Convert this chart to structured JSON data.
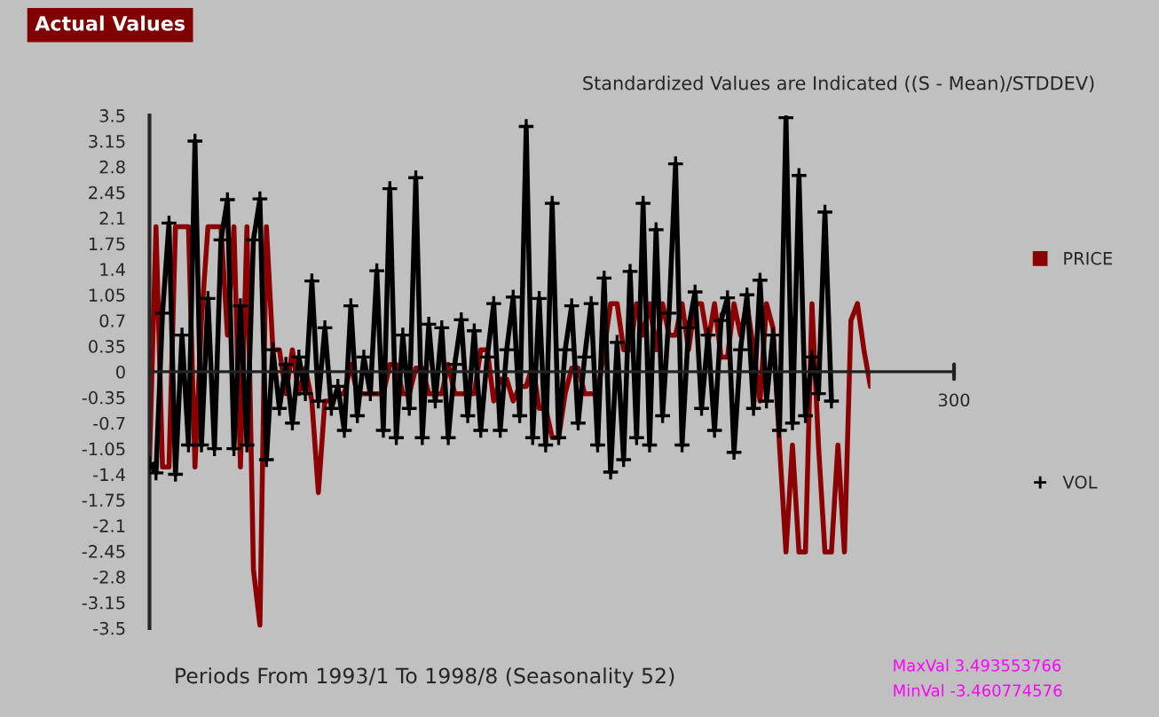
{
  "chart_data": {
    "type": "line",
    "title": "Actual Values",
    "subtitle": "Standardized Values are Indicated ((S - Mean)/STDDEV)",
    "annotations": [
      "Periods From 1993/1 To 1998/8 (Seasonality 52)",
      "MaxVal 3.493553766",
      "MinVal -3.460774576",
      "300"
    ],
    "categories": [
      null,
      null,
      null,
      null,
      null,
      null,
      null,
      null,
      null,
      null,
      null,
      null,
      null,
      null,
      null,
      null,
      null,
      null,
      null,
      null,
      null,
      null,
      null,
      null,
      null,
      null,
      null,
      null,
      null,
      null,
      null,
      null,
      null,
      null,
      null,
      null,
      null,
      null,
      null,
      null,
      null,
      null,
      null,
      null,
      null,
      null,
      null,
      null,
      null,
      null,
      null,
      null,
      null,
      null,
      null,
      null,
      null,
      null,
      null,
      null,
      null,
      null,
      null,
      null,
      null,
      null,
      null,
      null,
      null,
      null,
      null,
      null,
      null,
      null,
      null,
      null,
      null,
      null,
      null,
      null,
      null,
      null,
      null,
      null,
      null,
      null,
      null,
      null,
      null,
      null,
      null,
      null,
      null,
      null,
      null,
      null,
      null,
      null,
      null,
      null,
      null,
      null,
      null,
      null,
      null,
      null,
      null,
      null,
      null,
      null,
      null,
      null
    ],
    "ylim": [
      -3.5,
      3.5
    ],
    "yticks": [
      3.5,
      3.15,
      2.8,
      2.45,
      2.1,
      1.75,
      1.4,
      1.05,
      0.7,
      0.35,
      0,
      -0.35,
      -0.7,
      -1.05,
      -1.4,
      -1.75,
      -2.1,
      -2.45,
      -2.8,
      -3.15,
      -3.5
    ],
    "grid": false,
    "legend": "right",
    "ref_lines": [
      {
        "axis": "y",
        "value": 0,
        "color": "#222222"
      }
    ],
    "series": [
      {
        "name": "PRICE",
        "color": "#8b0000",
        "values": [
          -1.2,
          1.98,
          -1.3,
          -1.3,
          1.98,
          1.98,
          1.98,
          -1.3,
          0.7,
          1.98,
          1.98,
          1.98,
          0.5,
          1.98,
          -1.3,
          1.98,
          -2.7,
          -3.46,
          1.98,
          0.3,
          0.3,
          -0.3,
          0.3,
          -0.3,
          0.05,
          -0.4,
          -1.65,
          -0.4,
          -0.4,
          -0.3,
          -0.3,
          0.1,
          -0.3,
          -0.3,
          -0.3,
          -0.3,
          -0.3,
          0.1,
          0.1,
          -0.3,
          -0.3,
          0.05,
          0.05,
          -0.3,
          -0.3,
          -0.3,
          0.1,
          -0.3,
          -0.3,
          -0.3,
          -0.3,
          0.3,
          0.3,
          -0.4,
          -0.1,
          -0.1,
          -0.4,
          -0.2,
          -0.2,
          0.1,
          -0.5,
          -0.5,
          -0.9,
          -0.9,
          -0.3,
          0.05,
          0.05,
          -0.3,
          -0.3,
          -0.3,
          0.3,
          0.93,
          0.93,
          0.3,
          0.3,
          0.93,
          0.5,
          0.93,
          0.3,
          0.93,
          0.5,
          0.5,
          0.93,
          0.3,
          0.93,
          0.93,
          0.4,
          0.93,
          0.2,
          0.2,
          0.93,
          0.5,
          0.93,
          0.3,
          -0.4,
          0.93,
          0.6,
          -1.0,
          -2.46,
          -1.0,
          -2.46,
          -2.46,
          0.93,
          -1.0,
          -2.46,
          -2.46,
          -1.0,
          -2.46,
          0.7,
          0.93,
          0.3,
          -0.2
        ]
      },
      {
        "name": "VOL",
        "color": "#000000",
        "marker": "cross",
        "values": [
          -1.25,
          -1.38,
          0.8,
          2.03,
          -1.4,
          0.5,
          -1.0,
          3.15,
          -1.0,
          1.0,
          -1.05,
          1.8,
          2.35,
          -1.05,
          0.9,
          -1.0,
          1.8,
          2.36,
          -1.2,
          0.3,
          -0.5,
          0.1,
          -0.7,
          0.2,
          -0.3,
          1.24,
          -0.4,
          0.6,
          -0.5,
          -0.2,
          -0.8,
          0.9,
          -0.6,
          0.2,
          -0.3,
          1.38,
          -0.8,
          2.5,
          -0.9,
          0.5,
          -0.5,
          2.65,
          -0.9,
          0.65,
          -0.4,
          0.6,
          -0.9,
          0.1,
          0.71,
          -0.6,
          0.56,
          -0.8,
          0.2,
          0.93,
          -0.8,
          0.3,
          1.02,
          -0.6,
          3.35,
          -0.9,
          1.0,
          -1.0,
          2.3,
          -0.9,
          0.3,
          0.9,
          -0.7,
          0.2,
          0.93,
          -1.0,
          1.28,
          -1.37,
          0.4,
          -1.2,
          1.37,
          -0.9,
          2.3,
          -1.0,
          1.94,
          -0.6,
          0.8,
          2.84,
          -1.0,
          0.6,
          1.09,
          -0.5,
          0.5,
          -0.8,
          0.7,
          1.01,
          -1.1,
          0.3,
          1.05,
          -0.5,
          1.25,
          -0.4,
          0.5,
          -0.8,
          3.47,
          -0.7,
          2.68,
          -0.6,
          0.2,
          -0.3,
          2.18,
          -0.4,
          null,
          null,
          null,
          null,
          null,
          null
        ]
      }
    ]
  }
}
